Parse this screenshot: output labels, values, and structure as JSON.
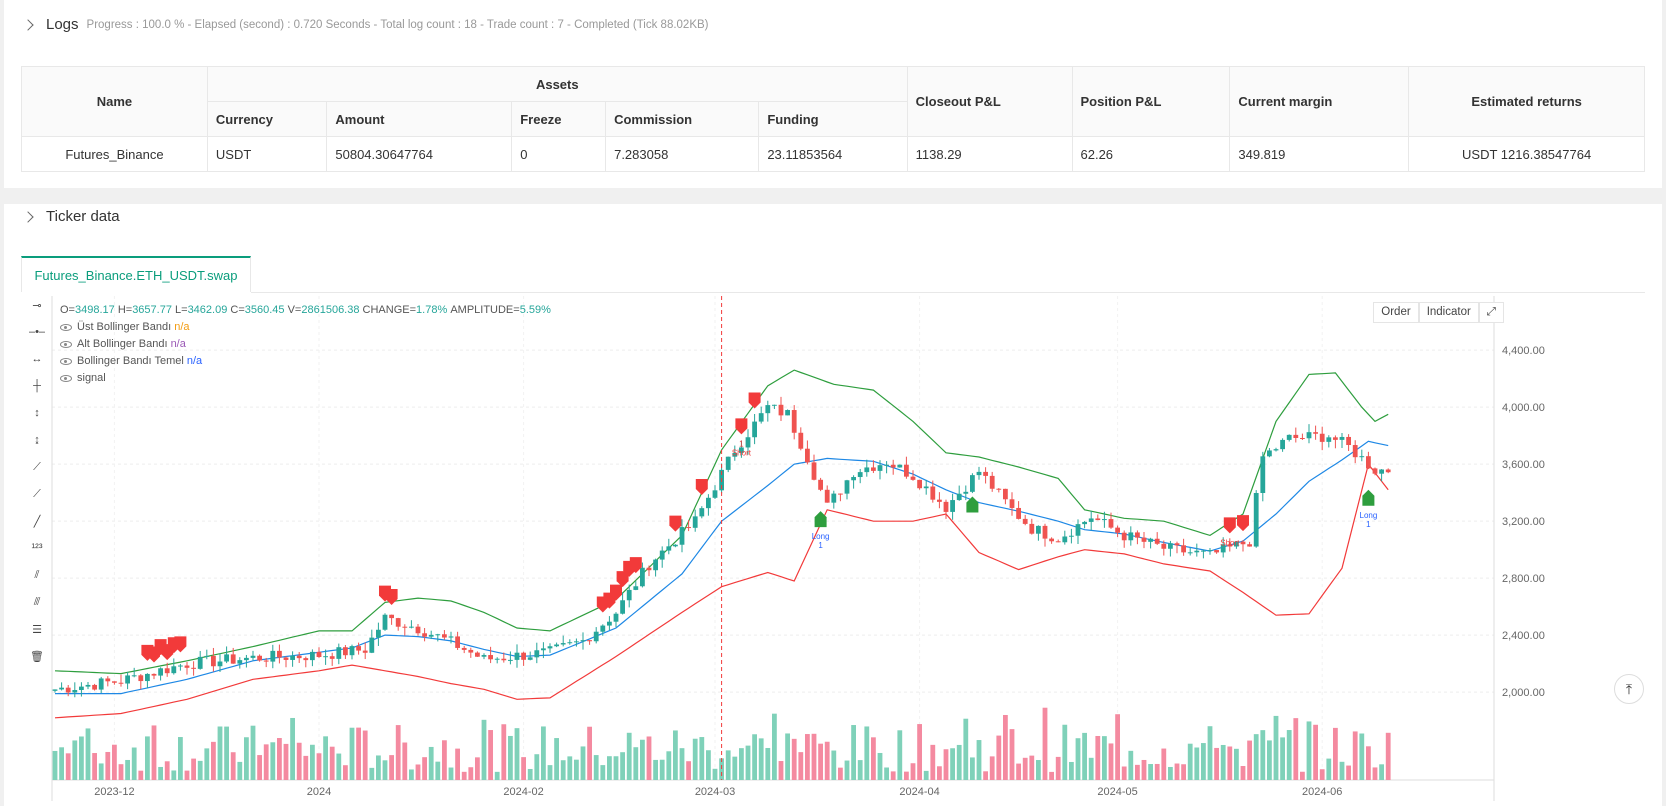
{
  "logs": {
    "title": "Logs",
    "meta": "Progress : 100.0 % - Elapsed (second) : 0.720  Seconds - Total log count : 18 - Trade count : 7 - Completed (Tick 88.02KB)"
  },
  "assets_table": {
    "headers": {
      "name": "Name",
      "assets": "Assets",
      "currency": "Currency",
      "amount": "Amount",
      "freeze": "Freeze",
      "commission": "Commission",
      "funding": "Funding",
      "closeout": "Closeout P&L",
      "position": "Position P&L",
      "margin": "Current margin",
      "returns": "Estimated returns"
    },
    "row": {
      "name": "Futures_Binance",
      "currency": "USDT",
      "amount": "50804.30647764",
      "freeze": "0",
      "commission": "7.283058",
      "funding": "23.11853564",
      "closeout": "1138.29",
      "position": "62.26",
      "margin": "349.819",
      "returns": "USDT 1216.38547764"
    }
  },
  "ticker": {
    "title": "Ticker data",
    "tab": "Futures_Binance.ETH_USDT.swap"
  },
  "chart": {
    "ohlc": {
      "o_k": "O=",
      "o": "3498.17",
      "h_k": "H=",
      "h": "3657.77",
      "l_k": "L=",
      "l": "3462.09",
      "c_k": "C=",
      "c": "3560.45",
      "v_k": "V=",
      "v": "2861506.38",
      "chg_k": "CHANGE=",
      "chg": "1.78%",
      "amp_k": "AMPLITUDE=",
      "amp": "5.59%"
    },
    "legend": [
      {
        "label": "Üst Bollinger Bandı",
        "value": "n/a",
        "color": "#f39c12"
      },
      {
        "label": "Alt Bollinger Bandı",
        "value": "n/a",
        "color": "#9b59b6"
      },
      {
        "label": "Bollinger Bandı Temel",
        "value": "n/a",
        "color": "#2962ff"
      },
      {
        "label": "signal",
        "value": "",
        "color": "#555"
      }
    ],
    "buttons": {
      "order": "Order",
      "indicator": "Indicator"
    },
    "colors": {
      "up": "#26a69a",
      "down": "#ef5350",
      "upper": "#2e9e3e",
      "lower": "#f23a3a",
      "basis": "#1e88e5",
      "vol_up": "#7fd1b9",
      "vol_down": "#f48aa0"
    }
  },
  "chart_data": {
    "type": "candlestick",
    "y_ticks": [
      "4,400.00",
      "4,000.00",
      "3,600.00",
      "3,200.00",
      "2,800.00",
      "2,400.00",
      "2,000.00"
    ],
    "y_values": [
      4400,
      4000,
      3600,
      3200,
      2800,
      2400,
      2000
    ],
    "ylim": [
      1580,
      4780
    ],
    "x_ticks": [
      "2023-12",
      "2024",
      "2024-02",
      "2024-03",
      "2024-04",
      "2024-05",
      "2024-06"
    ],
    "x_tick_index": [
      9,
      40,
      71,
      100,
      131,
      161,
      192
    ],
    "close_anchors": [
      [
        0,
        2020
      ],
      [
        10,
        2080
      ],
      [
        20,
        2200
      ],
      [
        30,
        2240
      ],
      [
        40,
        2260
      ],
      [
        47,
        2300
      ],
      [
        50,
        2520
      ],
      [
        55,
        2450
      ],
      [
        60,
        2350
      ],
      [
        65,
        2230
      ],
      [
        75,
        2280
      ],
      [
        80,
        2360
      ],
      [
        85,
        2560
      ],
      [
        90,
        2900
      ],
      [
        97,
        3200
      ],
      [
        103,
        3700
      ],
      [
        108,
        4000
      ],
      [
        111,
        3950
      ],
      [
        114,
        3650
      ],
      [
        117,
        3300
      ],
      [
        121,
        3550
      ],
      [
        126,
        3620
      ],
      [
        130,
        3520
      ],
      [
        135,
        3300
      ],
      [
        140,
        3550
      ],
      [
        145,
        3280
      ],
      [
        148,
        3150
      ],
      [
        152,
        3080
      ],
      [
        157,
        3230
      ],
      [
        162,
        3100
      ],
      [
        168,
        3010
      ],
      [
        175,
        2960
      ],
      [
        181,
        3060
      ],
      [
        183,
        3650
      ],
      [
        187,
        3780
      ],
      [
        193,
        3800
      ],
      [
        196,
        3720
      ],
      [
        200,
        3560
      ]
    ],
    "bands": {
      "upper": [
        [
          0,
          2150
        ],
        [
          10,
          2130
        ],
        [
          20,
          2220
        ],
        [
          30,
          2320
        ],
        [
          40,
          2430
        ],
        [
          45,
          2430
        ],
        [
          50,
          2630
        ],
        [
          55,
          2660
        ],
        [
          60,
          2640
        ],
        [
          65,
          2560
        ],
        [
          70,
          2450
        ],
        [
          75,
          2430
        ],
        [
          85,
          2650
        ],
        [
          95,
          3100
        ],
        [
          101,
          3700
        ],
        [
          108,
          4150
        ],
        [
          112,
          4260
        ],
        [
          118,
          4160
        ],
        [
          124,
          4120
        ],
        [
          130,
          3900
        ],
        [
          135,
          3680
        ],
        [
          140,
          3650
        ],
        [
          146,
          3580
        ],
        [
          152,
          3500
        ],
        [
          156,
          3280
        ],
        [
          162,
          3220
        ],
        [
          168,
          3200
        ],
        [
          175,
          3100
        ],
        [
          180,
          3250
        ],
        [
          185,
          3900
        ],
        [
          190,
          4230
        ],
        [
          194,
          4240
        ],
        [
          198,
          4000
        ],
        [
          200,
          3900
        ],
        [
          202,
          3950
        ]
      ],
      "lower": [
        [
          0,
          1820
        ],
        [
          10,
          1850
        ],
        [
          20,
          1950
        ],
        [
          30,
          2090
        ],
        [
          40,
          2150
        ],
        [
          45,
          2190
        ],
        [
          50,
          2150
        ],
        [
          55,
          2110
        ],
        [
          60,
          2060
        ],
        [
          65,
          2020
        ],
        [
          70,
          1950
        ],
        [
          75,
          1960
        ],
        [
          85,
          2250
        ],
        [
          95,
          2560
        ],
        [
          101,
          2740
        ],
        [
          108,
          2840
        ],
        [
          112,
          2780
        ],
        [
          117,
          3280
        ],
        [
          124,
          3200
        ],
        [
          130,
          3200
        ],
        [
          135,
          3250
        ],
        [
          140,
          2980
        ],
        [
          146,
          2860
        ],
        [
          152,
          2950
        ],
        [
          156,
          3000
        ],
        [
          162,
          2970
        ],
        [
          168,
          2900
        ],
        [
          175,
          2850
        ],
        [
          180,
          2700
        ],
        [
          185,
          2540
        ],
        [
          190,
          2550
        ],
        [
          195,
          2870
        ],
        [
          199,
          3600
        ],
        [
          202,
          3420
        ]
      ],
      "basis": [
        [
          0,
          1990
        ],
        [
          10,
          1990
        ],
        [
          20,
          2090
        ],
        [
          30,
          2220
        ],
        [
          40,
          2280
        ],
        [
          45,
          2310
        ],
        [
          50,
          2400
        ],
        [
          55,
          2390
        ],
        [
          60,
          2360
        ],
        [
          65,
          2300
        ],
        [
          70,
          2250
        ],
        [
          75,
          2260
        ],
        [
          85,
          2450
        ],
        [
          95,
          2830
        ],
        [
          101,
          3200
        ],
        [
          108,
          3450
        ],
        [
          112,
          3600
        ],
        [
          117,
          3640
        ],
        [
          124,
          3620
        ],
        [
          130,
          3530
        ],
        [
          135,
          3420
        ],
        [
          140,
          3330
        ],
        [
          146,
          3270
        ],
        [
          152,
          3200
        ],
        [
          156,
          3140
        ],
        [
          162,
          3110
        ],
        [
          168,
          3050
        ],
        [
          175,
          2990
        ],
        [
          180,
          3060
        ],
        [
          185,
          3250
        ],
        [
          190,
          3480
        ],
        [
          195,
          3630
        ],
        [
          199,
          3760
        ],
        [
          202,
          3730
        ]
      ]
    },
    "markers": [
      {
        "type": "short",
        "i": 14
      },
      {
        "type": "short",
        "i": 15
      },
      {
        "type": "short",
        "i": 16
      },
      {
        "type": "short",
        "i": 17
      },
      {
        "type": "short",
        "i": 18
      },
      {
        "type": "short",
        "i": 19
      },
      {
        "type": "short",
        "i": 50
      },
      {
        "type": "short",
        "i": 51
      },
      {
        "type": "short",
        "i": 83
      },
      {
        "type": "short",
        "i": 84
      },
      {
        "type": "short",
        "i": 85
      },
      {
        "type": "short",
        "i": 86
      },
      {
        "type": "short",
        "i": 87
      },
      {
        "type": "short",
        "i": 88
      },
      {
        "type": "short",
        "i": 94
      },
      {
        "type": "short",
        "i": 98
      },
      {
        "type": "short",
        "i": 104,
        "label": "1",
        "sub": "Short"
      },
      {
        "type": "short",
        "i": 106
      },
      {
        "type": "long",
        "i": 116,
        "label": "Long",
        "sub": "1"
      },
      {
        "type": "long",
        "i": 139
      },
      {
        "type": "short",
        "i": 178,
        "label": "Short"
      },
      {
        "type": "short",
        "i": 180
      },
      {
        "type": "long",
        "i": 199,
        "label": "Long",
        "sub": "1"
      }
    ],
    "vline_index": 101
  }
}
